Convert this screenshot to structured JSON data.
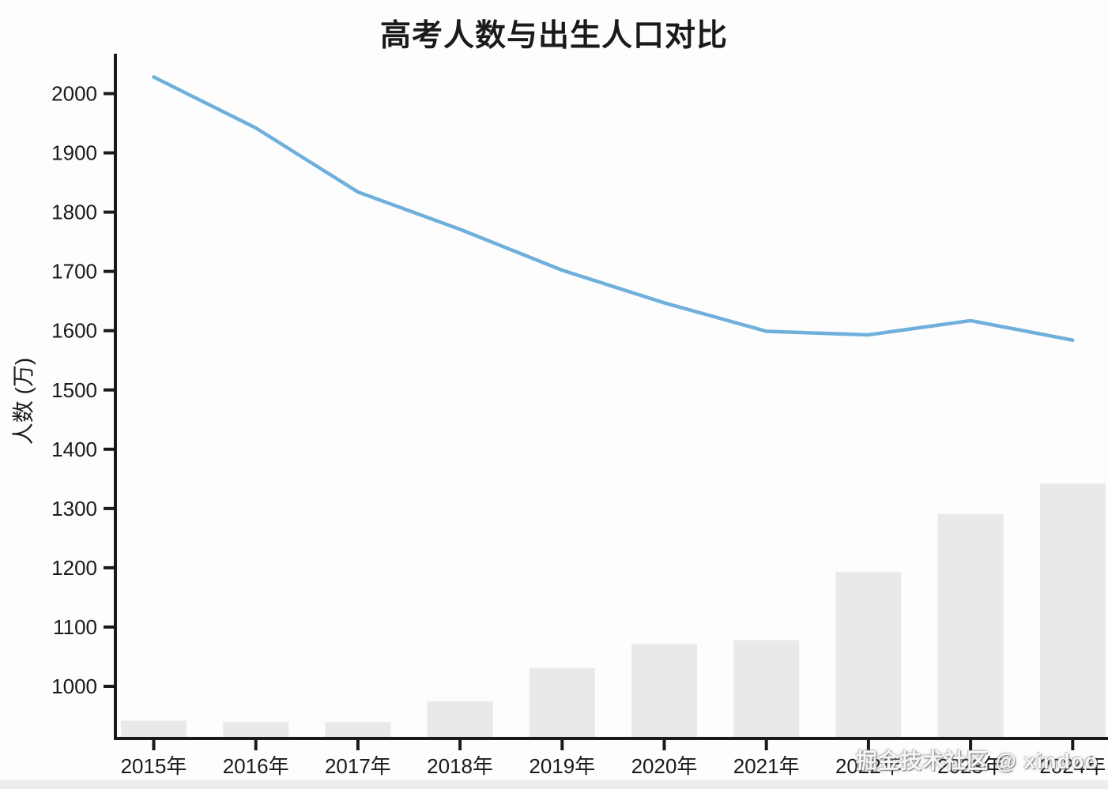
{
  "page": {
    "title": "高考人数与出生人口对比",
    "watermark": "掘金技术社区 @ xindoo"
  },
  "chart_data": {
    "type": "combo",
    "title": "高考人数与出生人口对比",
    "xlabel": "",
    "ylabel": "人数 (万)",
    "categories": [
      "2015年",
      "2016年",
      "2017年",
      "2018年",
      "2019年",
      "2020年",
      "2021年",
      "2022年",
      "2023年",
      "2024年"
    ],
    "series": [
      {
        "name": "高考人数",
        "type": "bar",
        "color": "#e9e9e9",
        "values": [
          942,
          940,
          940,
          975,
          1031,
          1071,
          1078,
          1193,
          1291,
          1342
        ]
      },
      {
        "name": "出生人口",
        "type": "line",
        "color": "#6fafdc",
        "values": [
          2028,
          1942,
          1834,
          1771,
          1702,
          1647,
          1599,
          1593,
          1617,
          1584
        ]
      }
    ],
    "yticks": [
      1000,
      1100,
      1200,
      1300,
      1400,
      1500,
      1600,
      1700,
      1800,
      1900,
      2000
    ],
    "ylim": [
      912,
      2068
    ],
    "grid": false,
    "legend": "none",
    "axis_color": "#1a1a1a",
    "watermark": "掘金技术社区 @ xindoo"
  }
}
